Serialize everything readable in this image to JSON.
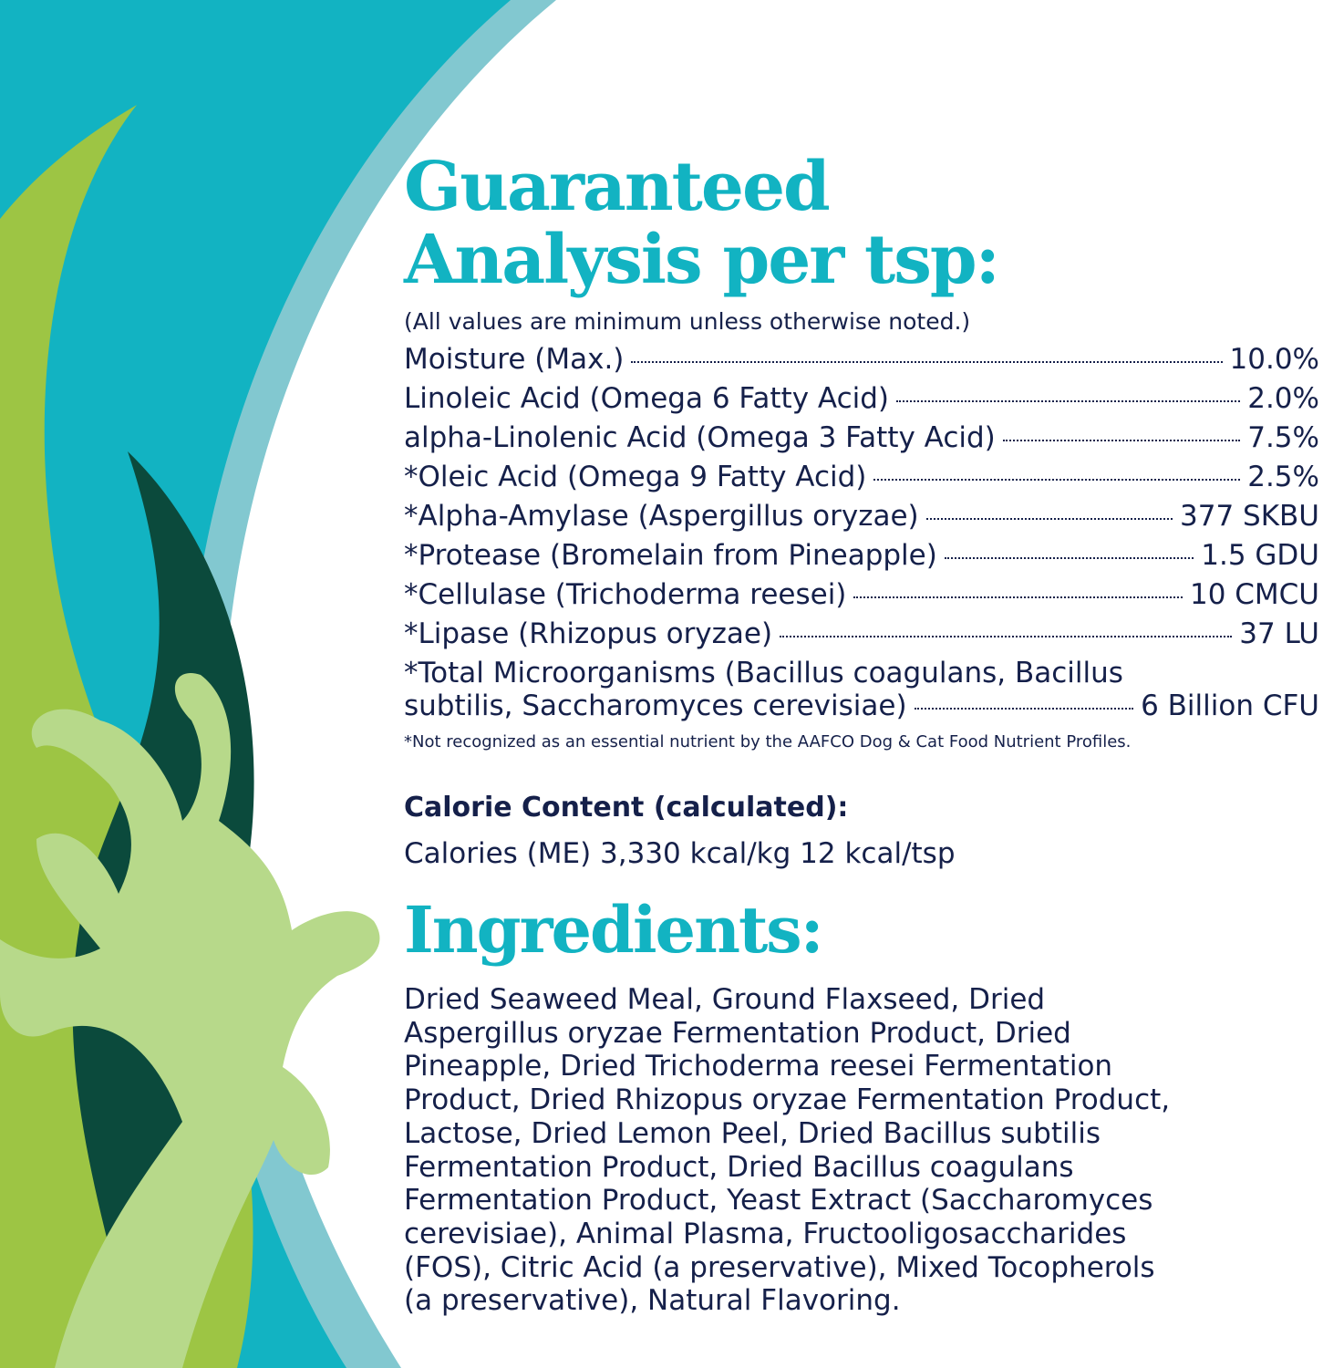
{
  "colors": {
    "teal": "#12b3c2",
    "light_blue": "#82c8d0",
    "lime": "#9dc544",
    "dark_green": "#0b4a3c",
    "pale_green": "#b7d98a",
    "text": "#15204a"
  },
  "analysis": {
    "title_line1": "Guaranteed",
    "title_line2": "Analysis per tsp:",
    "note": "(All values are minimum unless otherwise noted.)",
    "rows": [
      {
        "label": "Moisture (Max.)",
        "value": "10.0%"
      },
      {
        "label": "Linoleic Acid (Omega 6 Fatty Acid)",
        "value": "2.0%"
      },
      {
        "label": "alpha-Linolenic Acid (Omega 3 Fatty Acid)",
        "value": "7.5%"
      },
      {
        "label": "*Oleic Acid (Omega 9 Fatty Acid)",
        "value": "2.5%"
      },
      {
        "label": "*Alpha-Amylase (Aspergillus oryzae)",
        "value": "377 SKBU"
      },
      {
        "label": "*Protease (Bromelain from Pineapple)",
        "value": "1.5 GDU"
      },
      {
        "label": "*Cellulase (Trichoderma reesei)",
        "value": "10 CMCU"
      },
      {
        "label": "*Lipase (Rhizopus oryzae)",
        "value": "37 LU"
      }
    ],
    "micro": {
      "line1": "*Total Microorganisms (Bacillus coagulans, Bacillus",
      "line2": "subtilis, Saccharomyces cerevisiae)",
      "value": "6 Billion CFU"
    },
    "footnote": "*Not recognized as an essential nutrient by the AAFCO Dog & Cat Food Nutrient Profiles."
  },
  "calorie": {
    "heading": "Calorie Content (calculated):",
    "text": "Calories (ME) 3,330 kcal/kg 12 kcal/tsp"
  },
  "ingredients": {
    "heading": "Ingredients:",
    "lines": [
      "Dried Seaweed Meal, Ground Flaxseed, Dried",
      "Aspergillus oryzae Fermentation Product, Dried",
      "Pineapple, Dried Trichoderma reesei Fermentation",
      "Product, Dried Rhizopus oryzae Fermentation Product,",
      "Lactose, Dried Lemon Peel, Dried Bacillus subtilis",
      "Fermentation Product, Dried Bacillus coagulans",
      "Fermentation Product, Yeast Extract (Saccharomyces",
      "cerevisiae), Animal Plasma, Fructooligosaccharides",
      "(FOS), Citric Acid (a preservative), Mixed Tocopherols",
      "(a preservative), Natural Flavoring."
    ]
  }
}
